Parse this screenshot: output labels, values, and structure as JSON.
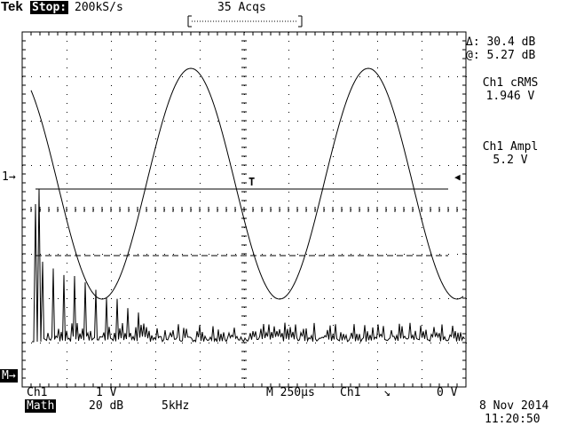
{
  "header": {
    "brand": "Tek",
    "run_state": "Stop:",
    "sample_rate": "200kS/s",
    "acquisitions": "35 Acqs"
  },
  "cursor_readout": {
    "delta": "Δ: 30.4 dB",
    "at": "@: 5.27 dB"
  },
  "measurements": [
    {
      "label": "Ch1 cRMS",
      "value": "1.946 V"
    },
    {
      "label": "Ch1 Ampl",
      "value": "5.2 V"
    }
  ],
  "markers": {
    "ch1_ground": "1→",
    "math_marker": "M→",
    "trigger_level": "◀",
    "trigger_t": "T"
  },
  "footer": {
    "ch1_label": "Ch1",
    "ch1_scale": "1 V",
    "math_label": "Math",
    "math_scale": "20 dB",
    "math_freq": "5kHz",
    "timebase": "M 250µs",
    "trigger_src": "Ch1",
    "trigger_slope": "↘",
    "trigger_level": "0 V",
    "date": "8 Nov 2014",
    "time": "11:20:50"
  },
  "chart_data": {
    "type": "line",
    "series": [
      {
        "name": "Ch1",
        "description": "sine wave",
        "amplitude_V": 5.2,
        "rms_V": 1.946,
        "period_us": 1000,
        "x_range_us": [
          0,
          2500
        ]
      },
      {
        "name": "Math",
        "description": "FFT spectrum"
      }
    ],
    "divisions": {
      "x": 10,
      "y": 8
    },
    "grid": true
  }
}
